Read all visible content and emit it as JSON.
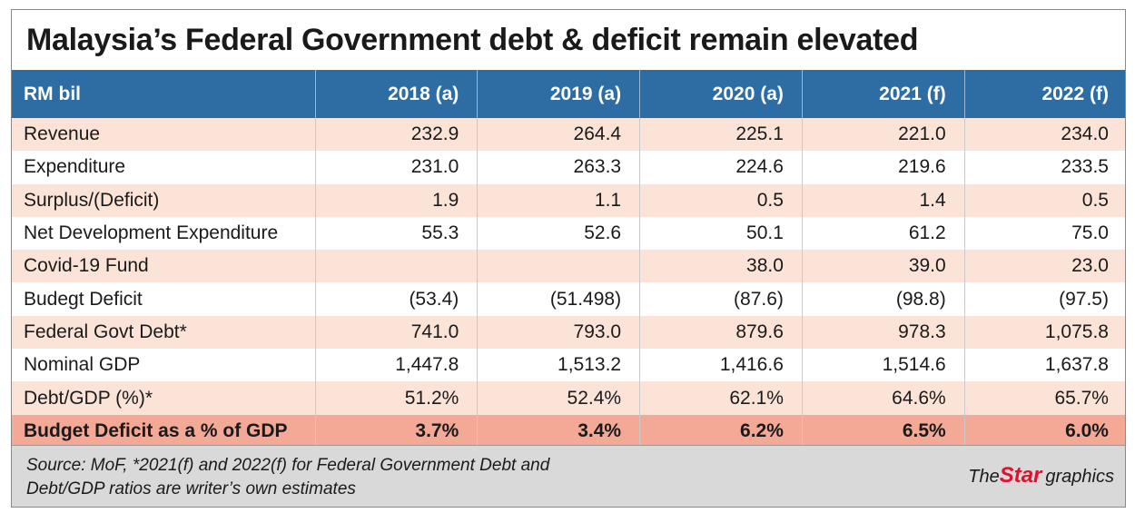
{
  "title": "Malaysia’s Federal Government debt & deficit remain elevated",
  "chart_data": {
    "type": "table",
    "title": "Malaysia’s Federal Government debt & deficit remain elevated",
    "header": "RM bil",
    "columns": [
      "2018 (a)",
      "2019 (a)",
      "2020 (a)",
      "2021 (f)",
      "2022 (f)"
    ],
    "rows": [
      {
        "label": "Revenue",
        "values": [
          "232.9",
          "264.4",
          "225.1",
          "221.0",
          "234.0"
        ]
      },
      {
        "label": "Expenditure",
        "values": [
          "231.0",
          "263.3",
          "224.6",
          "219.6",
          "233.5"
        ]
      },
      {
        "label": "Surplus/(Deficit)",
        "values": [
          "1.9",
          "1.1",
          "0.5",
          "1.4",
          "0.5"
        ]
      },
      {
        "label": "Net Development Expenditure",
        "values": [
          "55.3",
          "52.6",
          "50.1",
          "61.2",
          "75.0"
        ]
      },
      {
        "label": "Covid-19 Fund",
        "values": [
          "",
          "",
          "38.0",
          "39.0",
          "23.0"
        ]
      },
      {
        "label": "Budegt Deficit",
        "values": [
          "(53.4)",
          "(51.498)",
          "(87.6)",
          "(98.8)",
          "(97.5)"
        ]
      },
      {
        "label": "Federal Govt Debt*",
        "values": [
          "741.0",
          "793.0",
          "879.6",
          "978.3",
          "1,075.8"
        ]
      },
      {
        "label": "Nominal GDP",
        "values": [
          "1,447.8",
          "1,513.2",
          "1,416.6",
          "1,514.6",
          "1,637.8"
        ]
      },
      {
        "label": "Debt/GDP (%)*",
        "values": [
          "51.2%",
          "52.4%",
          "62.1%",
          "64.6%",
          "65.7%"
        ]
      },
      {
        "label": "Budget Deficit as a % of GDP",
        "values": [
          "3.7%",
          "3.4%",
          "6.2%",
          "6.5%",
          "6.0%"
        ]
      }
    ]
  },
  "footer": {
    "source_line1": "Source: MoF, *2021(f) and 2022(f) for Federal Government Debt and",
    "source_line2": "Debt/GDP ratios are writer’s own estimates",
    "brand_the": "The",
    "brand_star": "Star",
    "brand_graphics": "graphics"
  },
  "colors": {
    "header_bg": "#2e6da4",
    "shade_row": "#fbe3d8",
    "highlight_row": "#f4a896",
    "footer_bg": "#d9d9d9",
    "brand_red": "#e0102e"
  }
}
